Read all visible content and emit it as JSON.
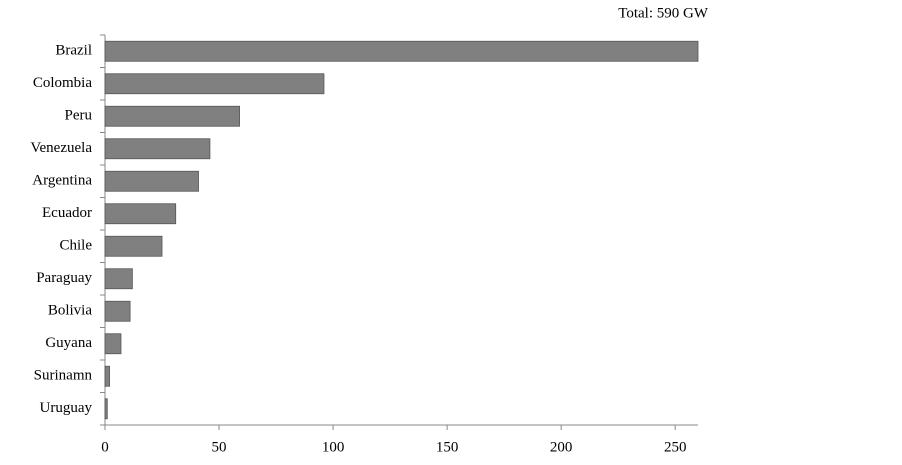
{
  "chart_data": {
    "type": "bar",
    "orientation": "horizontal",
    "annotation": "Total: 590 GW",
    "categories": [
      "Brazil",
      "Colombia",
      "Peru",
      "Venezuela",
      "Argentina",
      "Ecuador",
      "Chile",
      "Paraguay",
      "Bolivia",
      "Guyana",
      "Surinamn",
      "Uruguay"
    ],
    "values": [
      260,
      96,
      59,
      46,
      41,
      31,
      25,
      12,
      11,
      7,
      2,
      1
    ],
    "color": "#808080",
    "xlim": [
      0,
      260
    ],
    "xticks": [
      0,
      50,
      100,
      150,
      200,
      250
    ],
    "grid": false
  }
}
